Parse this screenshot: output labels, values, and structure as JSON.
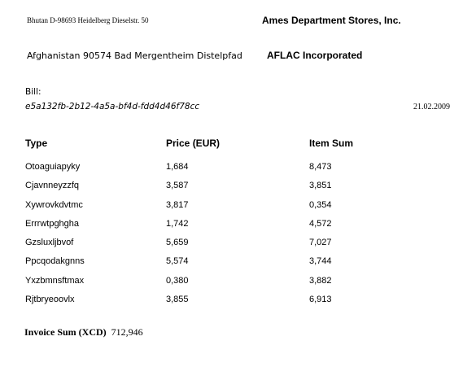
{
  "sender": {
    "address": "Bhutan D-98693 Heidelberg Dieselstr. 50"
  },
  "company": {
    "name": "Ames Department Stores, Inc."
  },
  "recipient": {
    "address": "Afghanistan 90574 Bad Mergentheim Distelpfad",
    "company": "AFLAC Incorporated"
  },
  "bill": {
    "label": "Bill:",
    "id": "e5a132fb-2b12-4a5a-bf4d-fdd4d46f78cc",
    "date": "21.02.2009"
  },
  "table": {
    "headers": {
      "type": "Type",
      "price": "Price (EUR)",
      "item_sum": "Item Sum"
    },
    "rows": [
      {
        "type": "Otoaguiapyky",
        "price": "1,684",
        "item_sum": "8,473"
      },
      {
        "type": "Cjavnneyzzfq",
        "price": "3,587",
        "item_sum": "3,851"
      },
      {
        "type": "Xywrovkdvtmc",
        "price": "3,817",
        "item_sum": "0,354"
      },
      {
        "type": "Errrwtpghgha",
        "price": "1,742",
        "item_sum": "4,572"
      },
      {
        "type": "Gzsluxljbvof",
        "price": "5,659",
        "item_sum": "7,027"
      },
      {
        "type": "Ppcqodakgnns",
        "price": "5,574",
        "item_sum": "3,744"
      },
      {
        "type": "Yxzbmnsftmax",
        "price": "0,380",
        "item_sum": "3,882"
      },
      {
        "type": "Rjtbryeoovlx",
        "price": "3,855",
        "item_sum": "6,913"
      }
    ]
  },
  "invoice_sum": {
    "label": "Invoice Sum (XCD)",
    "value": "712,946"
  }
}
